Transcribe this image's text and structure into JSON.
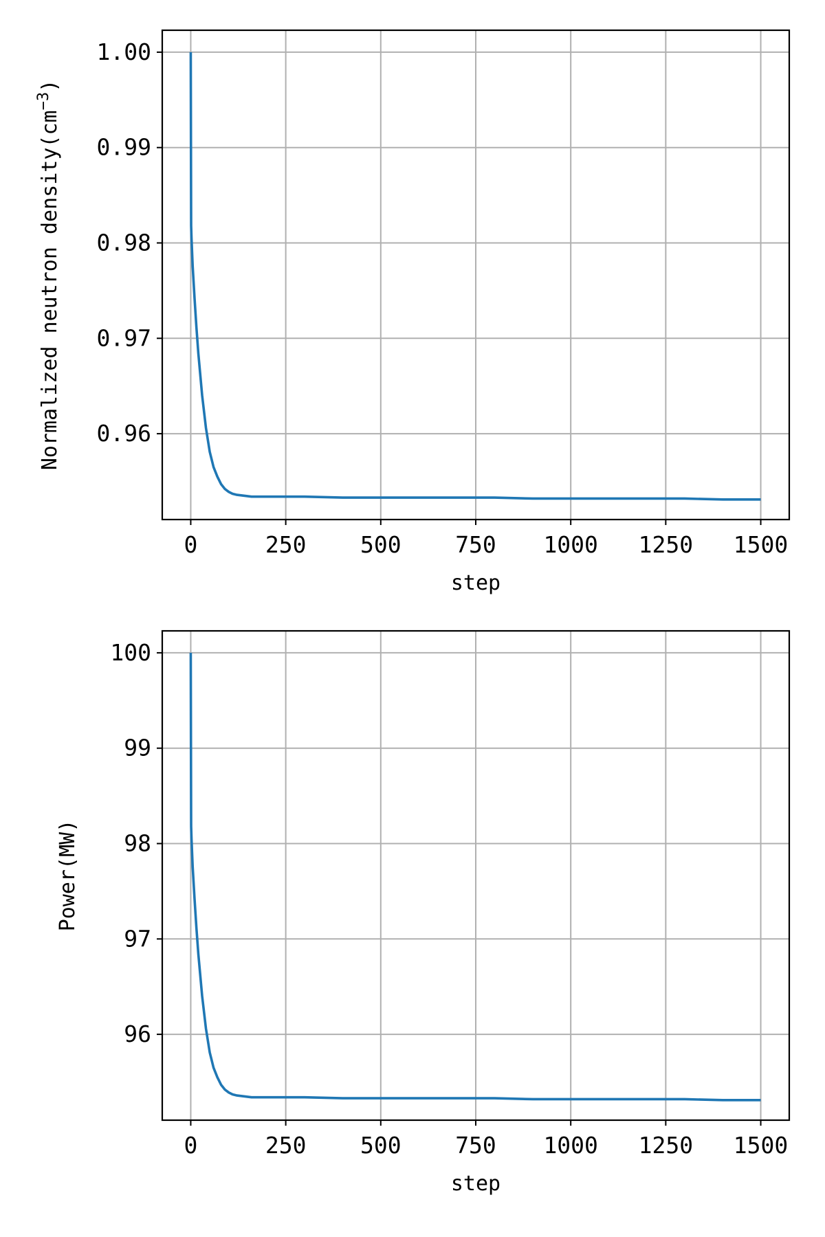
{
  "chart_data": [
    {
      "type": "line",
      "xlabel": "step",
      "ylabel": "Normalized neutron density(cm",
      "ylabel_superscript": "−3",
      "ylabel_suffix": ")",
      "xlim": [
        -75,
        1575
      ],
      "ylim": [
        0.951,
        1.0023
      ],
      "xticks": [
        0,
        250,
        500,
        750,
        1000,
        1250,
        1500
      ],
      "yticks": [
        0.96,
        0.97,
        0.98,
        0.99,
        1.0
      ],
      "ytick_labels": [
        "0.96",
        "0.97",
        "0.98",
        "0.99",
        "1.00"
      ],
      "grid": true,
      "line_color": "#1f77b4",
      "series": [
        {
          "x": [
            0,
            1,
            2,
            5,
            10,
            15,
            20,
            30,
            40,
            50,
            60,
            70,
            80,
            90,
            100,
            110,
            120,
            140,
            160,
            200,
            250,
            300,
            400,
            500,
            600,
            700,
            800,
            900,
            1000,
            1100,
            1200,
            1300,
            1400,
            1500
          ],
          "y": [
            1.0,
            0.9818,
            0.9805,
            0.9776,
            0.9742,
            0.9711,
            0.9684,
            0.964,
            0.9606,
            0.9581,
            0.9565,
            0.9555,
            0.9547,
            0.9542,
            0.9539,
            0.9537,
            0.9536,
            0.9535,
            0.9534,
            0.9534,
            0.9534,
            0.9534,
            0.9533,
            0.9533,
            0.9533,
            0.9533,
            0.9533,
            0.9532,
            0.9532,
            0.9532,
            0.9532,
            0.9532,
            0.9531,
            0.9531
          ]
        }
      ]
    },
    {
      "type": "line",
      "xlabel": "step",
      "ylabel": "Power(MW)",
      "xlim": [
        -75,
        1575
      ],
      "ylim": [
        95.1,
        100.23
      ],
      "xticks": [
        0,
        250,
        500,
        750,
        1000,
        1250,
        1500
      ],
      "yticks": [
        96,
        97,
        98,
        99,
        100
      ],
      "ytick_labels": [
        "96",
        "97",
        "98",
        "99",
        "100"
      ],
      "grid": true,
      "line_color": "#1f77b4",
      "series": [
        {
          "x": [
            0,
            1,
            2,
            5,
            10,
            15,
            20,
            30,
            40,
            50,
            60,
            70,
            80,
            90,
            100,
            110,
            120,
            140,
            160,
            200,
            250,
            300,
            400,
            500,
            600,
            700,
            800,
            900,
            1000,
            1100,
            1200,
            1300,
            1400,
            1500
          ],
          "y": [
            100.0,
            98.18,
            98.05,
            97.76,
            97.42,
            97.11,
            96.84,
            96.4,
            96.06,
            95.81,
            95.65,
            95.55,
            95.47,
            95.42,
            95.39,
            95.37,
            95.36,
            95.35,
            95.34,
            95.34,
            95.34,
            95.34,
            95.33,
            95.33,
            95.33,
            95.33,
            95.33,
            95.32,
            95.32,
            95.32,
            95.32,
            95.32,
            95.31,
            95.31
          ]
        }
      ]
    }
  ]
}
